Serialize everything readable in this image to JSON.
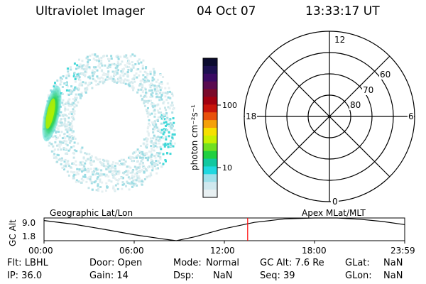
{
  "header": {
    "title": "Ultraviolet Imager",
    "date": "04 Oct 07",
    "time": "13:33:17 UT"
  },
  "colorbar": {
    "label": "photon cm⁻²s⁻¹",
    "ticks": [
      "100",
      "10"
    ],
    "colors": [
      "#0b0b2e",
      "#1c1050",
      "#3a0a63",
      "#5a0b50",
      "#7a0a2a",
      "#a10010",
      "#c8140a",
      "#e8500a",
      "#f5a00a",
      "#f6e000",
      "#c8f000",
      "#70e020",
      "#20d040",
      "#10c8a0",
      "#20d8e0",
      "#9ee0ea",
      "#cfe8ee",
      "#e8f0f2"
    ]
  },
  "polar": {
    "mlt_labels": {
      "top": "12",
      "left": "18",
      "right": "6",
      "bottom": "0"
    },
    "lat_labels": [
      "60",
      "70",
      "80"
    ]
  },
  "timeline": {
    "ylabel": "GC Alt",
    "ymax": "9.0",
    "ymin": "1.8",
    "left_label": "Geographic Lat/Lon",
    "right_label": "Apex MLat/MLT",
    "xticks": [
      "00:00",
      "06:00",
      "12:00",
      "18:00",
      "23:59"
    ]
  },
  "chart_data": {
    "type": "line",
    "title": "",
    "xlabel": "",
    "ylabel": "GC Alt",
    "xlim": [
      0,
      24
    ],
    "ylim": [
      1.8,
      9.0
    ],
    "x": [
      0,
      2,
      4,
      6,
      8,
      8.8,
      10,
      12,
      14,
      16,
      18,
      19.5,
      21,
      22.5,
      23.98
    ],
    "values": [
      8.2,
      7.0,
      5.4,
      3.7,
      2.3,
      1.8,
      3.0,
      5.6,
      7.6,
      8.7,
      9.0,
      9.0,
      8.6,
      7.9,
      6.9
    ],
    "current_time_hours": 13.55,
    "marker_color": "#ff0000"
  },
  "info": {
    "flt": "Flt: LBHL",
    "ip": "IP: 36.0",
    "door": "Door: Open",
    "gain": "Gain: 14",
    "mode_label": "Mode:",
    "mode_value": "Normal",
    "dsp_label": "Dsp:",
    "dsp_value": "NaN",
    "gcalt": "GC Alt: 7.6 Re",
    "seq": "Seq: 39",
    "glat_label": "GLat:",
    "glat_value": "NaN",
    "glon_label": "GLon:",
    "glon_value": "NaN"
  }
}
